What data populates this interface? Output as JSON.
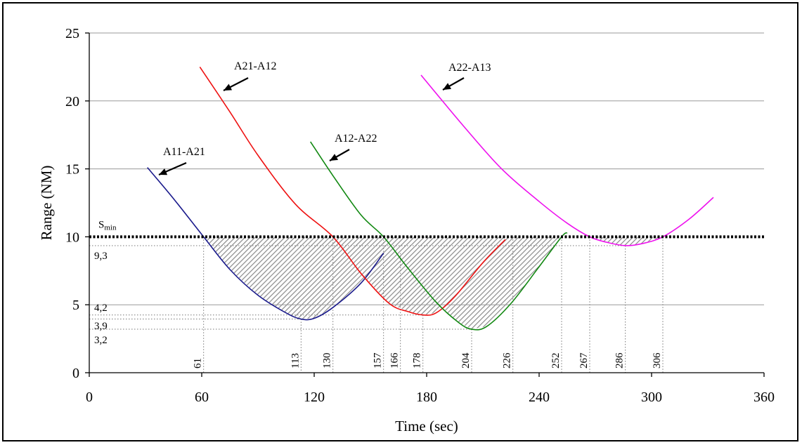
{
  "chart_data": {
    "type": "line",
    "xlabel": "Time (sec)",
    "ylabel": "Range (NM)",
    "xlim": [
      0,
      360
    ],
    "ylim": [
      0,
      25
    ],
    "x_ticks": [
      "0",
      "60",
      "120",
      "180",
      "240",
      "300",
      "360"
    ],
    "y_ticks": [
      "0",
      "5",
      "10",
      "15",
      "20",
      "25"
    ],
    "grid": "horizontal",
    "threshold": {
      "label": "S",
      "subscript": "min",
      "value": 10
    },
    "series": [
      {
        "name": "A11-A21",
        "color": "#1a1a8c",
        "points": [
          [
            31,
            15.1
          ],
          [
            45,
            12.8
          ],
          [
            61,
            10
          ],
          [
            75,
            7.6
          ],
          [
            90,
            5.7
          ],
          [
            105,
            4.4
          ],
          [
            113,
            3.95
          ],
          [
            120,
            4.0
          ],
          [
            130,
            4.8
          ],
          [
            145,
            6.6
          ],
          [
            157,
            8.8
          ]
        ]
      },
      {
        "name": "A21-A12",
        "color": "#ee1111",
        "points": [
          [
            59,
            22.5
          ],
          [
            75,
            19.2
          ],
          [
            90,
            16.0
          ],
          [
            110,
            12.4
          ],
          [
            130,
            10
          ],
          [
            145,
            7.3
          ],
          [
            160,
            5.1
          ],
          [
            170,
            4.5
          ],
          [
            178,
            4.25
          ],
          [
            185,
            4.4
          ],
          [
            195,
            5.6
          ],
          [
            210,
            8.1
          ],
          [
            222,
            9.8
          ]
        ]
      },
      {
        "name": "A12-A22",
        "color": "#118811",
        "points": [
          [
            118,
            17.0
          ],
          [
            130,
            14.5
          ],
          [
            145,
            11.6
          ],
          [
            157,
            10
          ],
          [
            170,
            7.7
          ],
          [
            185,
            5.2
          ],
          [
            197,
            3.7
          ],
          [
            204,
            3.2
          ],
          [
            212,
            3.4
          ],
          [
            225,
            5.1
          ],
          [
            240,
            7.8
          ],
          [
            252,
            10
          ],
          [
            255,
            10.3
          ]
        ]
      },
      {
        "name": "A22-A13",
        "color": "#ee11ee",
        "points": [
          [
            177,
            21.9
          ],
          [
            200,
            18.1
          ],
          [
            220,
            15.0
          ],
          [
            240,
            12.6
          ],
          [
            255,
            11.0
          ],
          [
            267,
            10
          ],
          [
            276,
            9.6
          ],
          [
            286,
            9.35
          ],
          [
            295,
            9.5
          ],
          [
            306,
            10
          ],
          [
            320,
            11.3
          ],
          [
            333,
            12.9
          ]
        ]
      }
    ],
    "curve_labels": [
      "A11-A21",
      "A21-A12",
      "A12-A22",
      "A22-A13"
    ],
    "range_markers": [
      "9,3",
      "4,2",
      "3,9",
      "3,2"
    ],
    "time_markers": [
      "61",
      "113",
      "130",
      "157",
      "166",
      "178",
      "204",
      "226",
      "252",
      "267",
      "286",
      "306"
    ]
  }
}
